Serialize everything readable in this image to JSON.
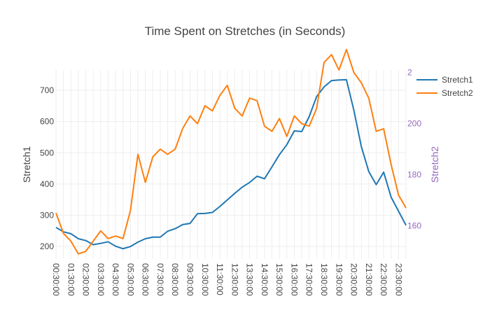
{
  "chart_data": {
    "type": "line",
    "title": "Time Spent on Stretches (in Seconds)",
    "xlabel": "",
    "ylabel": "Stretch1",
    "y2label": "Stretch2",
    "ylim": [
      160,
      765
    ],
    "y2lim": [
      147,
      221
    ],
    "yticks": [
      200,
      300,
      400,
      500,
      600,
      700
    ],
    "y2ticks": [
      160,
      180,
      200,
      "2"
    ],
    "x": [
      "00:30:00",
      "01:00:00",
      "01:30:00",
      "02:00:00",
      "02:30:00",
      "03:00:00",
      "03:30:00",
      "04:00:00",
      "04:30:00",
      "05:00:00",
      "05:30:00",
      "06:00:00",
      "06:30:00",
      "07:00:00",
      "07:30:00",
      "08:00:00",
      "08:30:00",
      "09:00:00",
      "09:30:00",
      "10:00:00",
      "10:30:00",
      "11:00:00",
      "11:30:00",
      "12:00:00",
      "12:30:00",
      "13:00:00",
      "13:30:00",
      "14:00:00",
      "14:30:00",
      "15:00:00",
      "15:30:00",
      "16:00:00",
      "16:30:00",
      "17:00:00",
      "17:30:00",
      "18:00:00",
      "18:30:00",
      "19:00:00",
      "19:30:00",
      "20:00:00",
      "20:30:00",
      "21:00:00",
      "21:30:00",
      "22:00:00",
      "22:30:00",
      "23:00:00",
      "23:30:00",
      "24:00:00"
    ],
    "xticklabels": [
      "00:30:00",
      "01:30:00",
      "02:30:00",
      "03:30:00",
      "04:30:00",
      "05:30:00",
      "06:30:00",
      "07:30:00",
      "08:30:00",
      "09:30:00",
      "10:30:00",
      "11:30:00",
      "12:30:00",
      "13:30:00",
      "14:30:00",
      "15:30:00",
      "16:30:00",
      "17:30:00",
      "18:30:00",
      "19:30:00",
      "20:30:00",
      "21:30:00",
      "22:30:00",
      "23:30:00"
    ],
    "series": [
      {
        "name": "Stretch1",
        "axis": "left",
        "color": "#1f77b4",
        "values": [
          261,
          247,
          241,
          225,
          219,
          206,
          210,
          215,
          201,
          193,
          200,
          214,
          225,
          230,
          230,
          249,
          257,
          270,
          274,
          305,
          306,
          309,
          328,
          349,
          370,
          390,
          405,
          425,
          417,
          455,
          494,
          526,
          570,
          568,
          616,
          680,
          711,
          731,
          733,
          734,
          636,
          520,
          440,
          398,
          438,
          358,
          313,
          268
        ]
      },
      {
        "name": "Stretch2",
        "axis": "right",
        "color": "#ff7f0e",
        "values": [
          165,
          157,
          154,
          149,
          150,
          154,
          158,
          155,
          156,
          155,
          166,
          188,
          177,
          187,
          190,
          188,
          190,
          198,
          203,
          200,
          207,
          205,
          211,
          215,
          206,
          203,
          210,
          209,
          199,
          197,
          202,
          195,
          203,
          200,
          199,
          206,
          224,
          227,
          221,
          229,
          220,
          216,
          210,
          197,
          198,
          184,
          172,
          167
        ]
      }
    ],
    "legend_position": "top-right"
  }
}
